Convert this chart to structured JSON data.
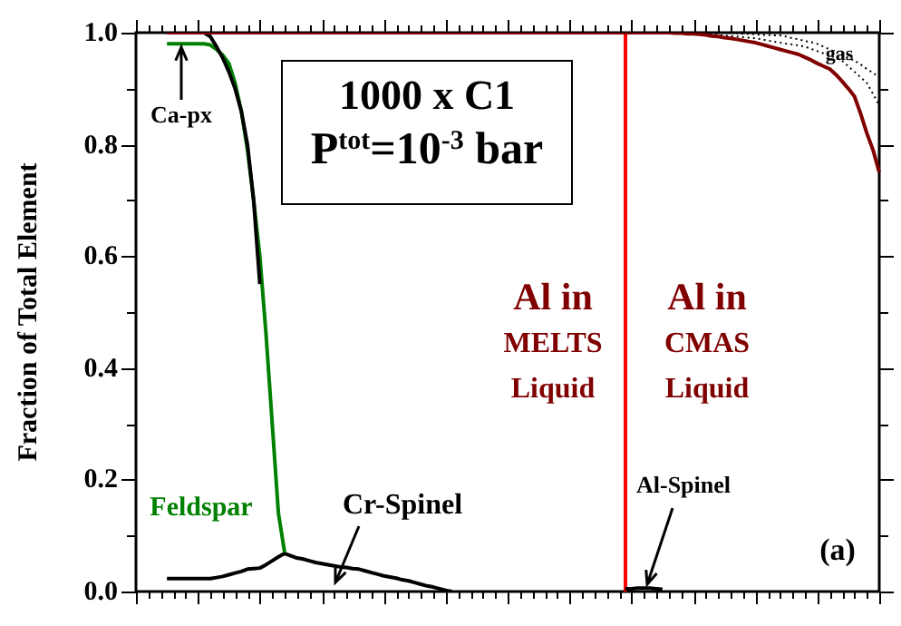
{
  "chart_data": {
    "type": "line",
    "title": "1000 x C1",
    "subtitle": "P$^{tot}$=10$^{-3}$ bar",
    "ylabel": "Fraction of Total Element",
    "categories": [
      null,
      null,
      null,
      null,
      null,
      null,
      null,
      null,
      null,
      null,
      null,
      null,
      null,
      null,
      null,
      null,
      null,
      null,
      null,
      null,
      null,
      null,
      null,
      null,
      null,
      null,
      null,
      null,
      null,
      null,
      null,
      null,
      null,
      null,
      null,
      null,
      null,
      null,
      null,
      null,
      null,
      null,
      null,
      null,
      null,
      null,
      null,
      null,
      null,
      null,
      null,
      null,
      null,
      null,
      null,
      null,
      null,
      null,
      null,
      null,
      null,
      null,
      null,
      null,
      null,
      null,
      null,
      null,
      null,
      null,
      null,
      null,
      null,
      null,
      null,
      null,
      null,
      null,
      null,
      null,
      null,
      null,
      null,
      null,
      null,
      null,
      null,
      null,
      null,
      null,
      null,
      null,
      null,
      null,
      null,
      null,
      null,
      null,
      null,
      null,
      null,
      null,
      null,
      null,
      null,
      null,
      null,
      null,
      null,
      null,
      null,
      null,
      null,
      null,
      null,
      null,
      null,
      null,
      null,
      null,
      null
    ],
    "ylim": [
      0,
      1
    ],
    "yticks": [
      {
        "value": 0,
        "label": "0.0"
      },
      {
        "value": 0.1,
        "label": null
      },
      {
        "value": 0.2,
        "label": "0.2"
      },
      {
        "value": 0.3,
        "label": null
      },
      {
        "value": 0.4,
        "label": "0.4"
      },
      {
        "value": 0.5,
        "label": null
      },
      {
        "value": 0.6,
        "label": "0.6"
      },
      {
        "value": 0.7,
        "label": null
      },
      {
        "value": 0.8,
        "label": "0.8"
      },
      {
        "value": 0.9,
        "label": null
      },
      {
        "value": 1,
        "label": "1.0"
      }
    ],
    "tick_labels": "y",
    "grid": false,
    "legend": false,
    "marker": "none",
    "line_style": "solid",
    "series": [
      {
        "color": "#800000",
        "values": [
          null,
          null,
          null,
          null,
          null,
          1,
          1,
          1,
          1,
          1,
          1,
          1,
          1,
          1,
          1,
          1,
          1,
          1,
          1,
          1,
          1,
          1,
          1,
          1,
          1,
          1,
          1,
          1,
          1,
          1,
          1,
          1,
          1,
          1,
          1,
          1,
          1,
          1,
          1,
          1,
          1,
          1,
          1,
          1,
          1,
          1,
          1,
          1,
          1,
          1,
          1,
          1,
          1,
          1,
          1,
          1,
          1,
          1,
          1,
          1,
          1,
          1,
          1,
          1,
          1,
          1,
          1,
          1,
          1,
          1,
          1,
          1,
          1,
          1,
          1,
          1,
          1,
          1,
          1,
          1,
          1,
          1,
          1,
          1,
          1,
          1,
          1,
          0.999,
          0.999,
          0.998,
          0.998,
          0.997,
          0.996,
          0.994,
          0.993,
          0.991,
          0.99,
          0.988,
          0.986,
          0.984,
          0.982,
          0.979,
          0.976,
          0.973,
          0.97,
          0.967,
          0.964,
          0.961,
          0.956,
          0.951,
          0.945,
          0.94,
          0.935,
          0.925,
          0.913,
          0.9,
          0.886,
          0.855,
          0.82,
          0.79,
          0.75
        ]
      },
      {
        "color": "#000000",
        "values": [
          null,
          null,
          null,
          null,
          null,
          null,
          null,
          null,
          null,
          null,
          null,
          1,
          0.993,
          0.975,
          0.955,
          0.93,
          0.9,
          0.86,
          0.8,
          0.7,
          0.55,
          null,
          null,
          null,
          null,
          null,
          null,
          null,
          null,
          null,
          null,
          null,
          null,
          null,
          null,
          null,
          null,
          null,
          null,
          null,
          null,
          null,
          null,
          null,
          null,
          null,
          null,
          null,
          null,
          null,
          null,
          null,
          null,
          null,
          null,
          null,
          null,
          null,
          null,
          null,
          null,
          null,
          null,
          null,
          null,
          null,
          null,
          null,
          null,
          null,
          null,
          null,
          null,
          null,
          null,
          null,
          null,
          null,
          null,
          null,
          null,
          null,
          null,
          null,
          null,
          null,
          null,
          null,
          null,
          null,
          null,
          null,
          null,
          null,
          null,
          null,
          null,
          null,
          null,
          null,
          null,
          null,
          null,
          null,
          null,
          null,
          null,
          null,
          null,
          null,
          null,
          null,
          null,
          null,
          null,
          null,
          null,
          null,
          null,
          null,
          null
        ]
      },
      {
        "color": "#008000",
        "values": [
          null,
          null,
          null,
          null,
          null,
          0.98,
          0.98,
          0.98,
          0.98,
          0.98,
          0.98,
          0.98,
          0.978,
          0.97,
          0.96,
          0.945,
          0.91,
          0.86,
          0.79,
          0.7,
          0.6,
          0.46,
          0.3,
          0.14,
          0.07,
          null,
          null,
          null,
          null,
          null,
          null,
          null,
          null,
          null,
          null,
          null,
          null,
          null,
          null,
          null,
          null,
          null,
          null,
          null,
          null,
          null,
          null,
          null,
          null,
          null,
          null,
          null,
          null,
          null,
          null,
          null,
          null,
          null,
          null,
          null,
          null,
          null,
          null,
          null,
          null,
          null,
          null,
          null,
          null,
          null,
          null,
          null,
          null,
          null,
          null,
          null,
          null,
          null,
          null,
          null,
          null,
          null,
          null,
          null,
          null,
          null,
          null,
          null,
          null,
          null,
          null,
          null,
          null,
          null,
          null,
          null,
          null,
          null,
          null,
          null,
          null,
          null,
          null,
          null,
          null,
          null,
          null,
          null,
          null,
          null,
          null,
          null,
          null,
          null,
          null,
          null,
          null,
          null,
          null,
          null,
          null
        ]
      },
      {
        "color": "#000000",
        "values": [
          null,
          null,
          null,
          null,
          null,
          0.023,
          0.023,
          0.023,
          0.023,
          0.023,
          0.023,
          0.023,
          0.023,
          0.025,
          0.027,
          0.03,
          0.033,
          0.036,
          0.04,
          0.041,
          0.042,
          0.048,
          0.055,
          0.062,
          0.068,
          0.064,
          0.06,
          0.058,
          0.055,
          0.052,
          0.05,
          0.048,
          0.046,
          0.044,
          0.043,
          0.041,
          0.04,
          0.037,
          0.034,
          0.031,
          0.028,
          0.026,
          0.024,
          0.021,
          0.019,
          0.016,
          0.013,
          0.01,
          0.008,
          0.005,
          0.002,
          0,
          null,
          null,
          null,
          null,
          null,
          null,
          null,
          null,
          null,
          null,
          null,
          null,
          null,
          null,
          null,
          null,
          null,
          null,
          null,
          null,
          null,
          null,
          null,
          null,
          null,
          null,
          null,
          null,
          null,
          null,
          null,
          null,
          null,
          null,
          null,
          null,
          null,
          null,
          null,
          null,
          null,
          null,
          null,
          null,
          null,
          null,
          null,
          null,
          null,
          null,
          null,
          null,
          null,
          null,
          null,
          null,
          null,
          null,
          null,
          null,
          null,
          null,
          null,
          null,
          null,
          null,
          null,
          null,
          null
        ]
      },
      {
        "color": "#000000",
        "values": [
          null,
          null,
          null,
          null,
          null,
          null,
          null,
          null,
          null,
          null,
          null,
          null,
          null,
          null,
          null,
          null,
          null,
          null,
          null,
          null,
          null,
          null,
          null,
          null,
          null,
          null,
          null,
          null,
          null,
          null,
          null,
          null,
          null,
          null,
          null,
          null,
          null,
          null,
          null,
          null,
          null,
          null,
          null,
          null,
          null,
          null,
          null,
          null,
          null,
          null,
          null,
          null,
          null,
          null,
          null,
          null,
          null,
          null,
          null,
          null,
          null,
          null,
          null,
          null,
          null,
          null,
          null,
          null,
          null,
          null,
          null,
          null,
          null,
          null,
          null,
          null,
          null,
          null,
          null,
          0.005,
          0.005,
          0.006,
          0.006,
          0.006,
          0.005,
          0.004,
          null,
          null,
          null,
          null,
          null,
          null,
          null,
          null,
          null,
          null,
          null,
          null,
          null,
          null,
          null,
          null,
          null,
          null,
          null,
          null,
          null,
          null,
          null,
          null,
          null,
          null,
          null,
          null,
          null,
          null,
          null,
          null,
          null,
          null,
          null
        ]
      },
      {
        "color": "#000000",
        "line_style": "dotted",
        "values": [
          null,
          null,
          null,
          null,
          null,
          null,
          null,
          null,
          null,
          null,
          null,
          null,
          null,
          null,
          null,
          null,
          null,
          null,
          null,
          null,
          null,
          null,
          null,
          null,
          null,
          null,
          null,
          null,
          null,
          null,
          null,
          null,
          null,
          null,
          null,
          null,
          null,
          null,
          null,
          null,
          null,
          null,
          null,
          null,
          null,
          null,
          null,
          null,
          null,
          null,
          null,
          null,
          null,
          null,
          null,
          null,
          null,
          null,
          null,
          null,
          null,
          null,
          null,
          null,
          null,
          null,
          null,
          null,
          null,
          null,
          null,
          null,
          null,
          null,
          null,
          null,
          null,
          null,
          null,
          null,
          null,
          null,
          null,
          null,
          null,
          null,
          null,
          null,
          null,
          null,
          1,
          0.999,
          0.998,
          0.997,
          0.996,
          0.995,
          0.994,
          0.993,
          0.992,
          0.991,
          0.99,
          0.988,
          0.986,
          0.984,
          0.982,
          0.98,
          0.979,
          0.977,
          0.975,
          0.971,
          0.967,
          0.963,
          0.959,
          0.955,
          0.95,
          0.94,
          0.93,
          0.92,
          0.91,
          0.89,
          0.87
        ]
      },
      {
        "color": "#000000",
        "line_style": "dotted",
        "values": [
          null,
          null,
          null,
          null,
          null,
          null,
          null,
          null,
          null,
          null,
          null,
          null,
          null,
          null,
          null,
          null,
          null,
          null,
          null,
          null,
          null,
          null,
          null,
          null,
          null,
          null,
          null,
          null,
          null,
          null,
          null,
          null,
          null,
          null,
          null,
          null,
          null,
          null,
          null,
          null,
          null,
          null,
          null,
          null,
          null,
          null,
          null,
          null,
          null,
          null,
          null,
          null,
          null,
          null,
          null,
          null,
          null,
          null,
          null,
          null,
          null,
          null,
          null,
          null,
          null,
          null,
          null,
          null,
          null,
          null,
          null,
          null,
          null,
          null,
          null,
          null,
          null,
          null,
          null,
          null,
          null,
          null,
          null,
          null,
          null,
          null,
          null,
          null,
          null,
          null,
          null,
          null,
          null,
          null,
          null,
          null,
          1,
          0.999,
          0.998,
          0.998,
          0.997,
          0.996,
          0.996,
          0.995,
          0.995,
          0.993,
          0.99,
          0.988,
          0.985,
          0.983,
          0.98,
          0.975,
          0.97,
          0.965,
          0.96,
          0.955,
          0.95,
          0.943,
          0.935,
          0.928,
          0.92
        ]
      }
    ],
    "annotations": [
      "Ca-px",
      "Cr-Spinel",
      "Al-Spinel",
      "Feldspar",
      "Al in\nMELTS\nLiquid",
      "Al in\nCMAS\nLiquid",
      "gas",
      "(a)"
    ]
  }
}
